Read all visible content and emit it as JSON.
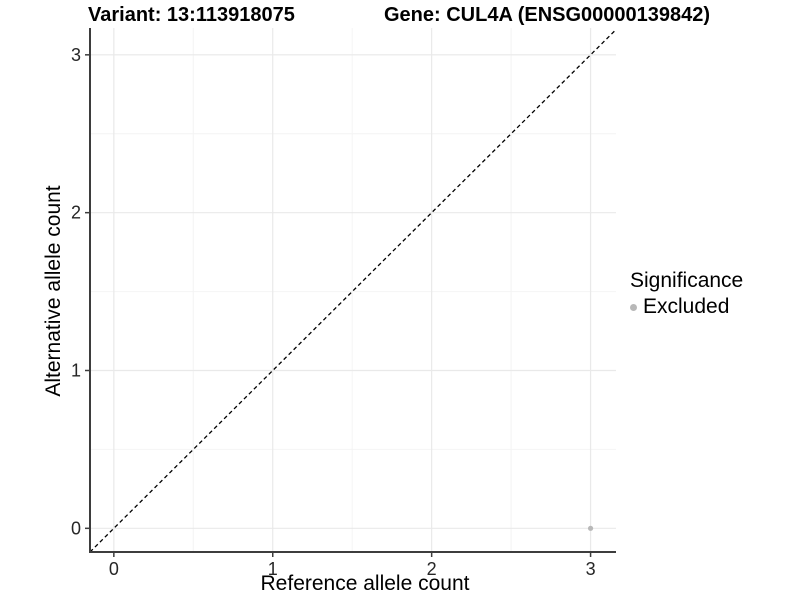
{
  "chart_data": {
    "type": "scatter",
    "titles": {
      "variant": "Variant: 13:113918075",
      "gene": "Gene: CUL4A (ENSG00000139842)"
    },
    "xlabel": "Reference allele count",
    "ylabel": "Alternative allele count",
    "xlim": [
      -0.15,
      3.16
    ],
    "ylim": [
      -0.15,
      3.17
    ],
    "xticks": [
      0,
      1,
      2,
      3
    ],
    "yticks": [
      0,
      1,
      2,
      3
    ],
    "xticks_minor": [
      0.5,
      1.5,
      2.5
    ],
    "yticks_minor": [
      0.5,
      1.5,
      2.5
    ],
    "grid": true,
    "legend_position": "right",
    "points": [
      {
        "x": 3,
        "y": 0,
        "significance": "Excluded"
      }
    ],
    "reference_line": {
      "slope": 1,
      "intercept": 0,
      "style": "dashed"
    },
    "legend": {
      "title": "Significance",
      "entries": [
        {
          "label": "Excluded",
          "color": "#b8b8b8"
        }
      ]
    },
    "colors": {
      "point": "#b8b8b8",
      "grid_major": "#e9e9e9",
      "grid_minor": "#f4f4f4",
      "axis": "#3d3d3d",
      "reference_line": "#000000",
      "tick_label": "#262626",
      "text": "#000000"
    }
  }
}
